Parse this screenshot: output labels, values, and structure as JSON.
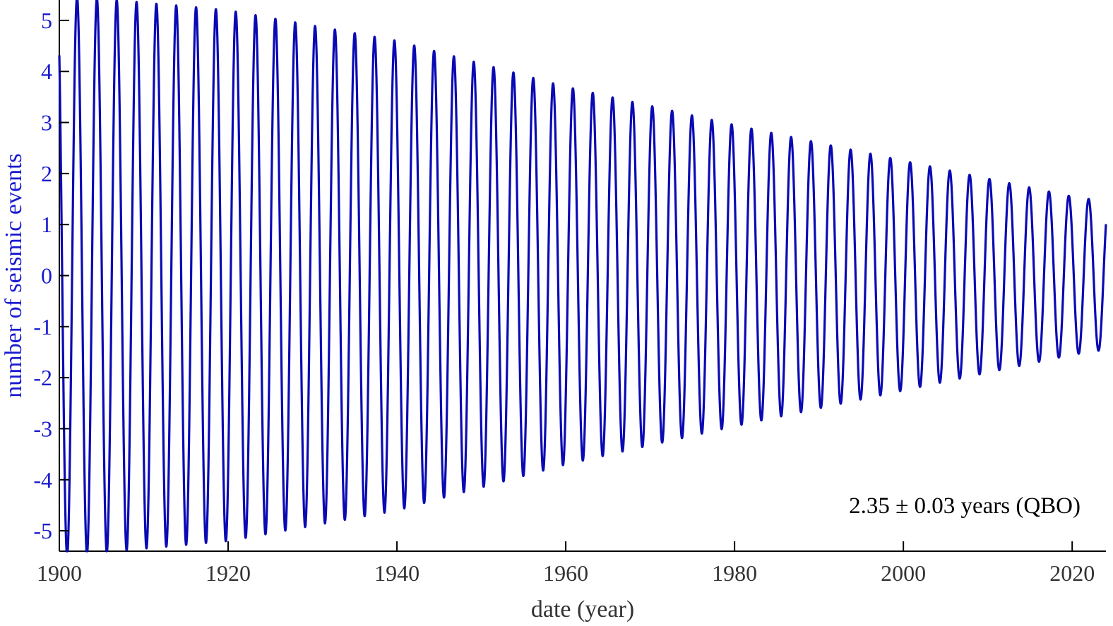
{
  "chart_data": {
    "type": "line",
    "title": "",
    "xlabel": "date (year)",
    "ylabel": "number of seismic events",
    "xlim": [
      1900,
      2024
    ],
    "ylim": [
      -5.4,
      5.4
    ],
    "xticks": [
      1900,
      1920,
      1940,
      1960,
      1980,
      2000,
      2020
    ],
    "xtick_labels": [
      "1900",
      "1920",
      "1940",
      "1960",
      "1980",
      "2000",
      "2020"
    ],
    "yticks": [
      -5,
      -4,
      -3,
      -2,
      -1,
      0,
      1,
      2,
      3,
      4,
      5
    ],
    "ytick_labels": [
      "-5",
      "-4",
      "-3",
      "-2",
      "-1",
      "0",
      "1",
      "2",
      "3",
      "4",
      "5"
    ],
    "grid": false,
    "annotation": "2.35 ± 0.03 years (QBO)",
    "series": [
      {
        "period_years": 2.35,
        "amplitude_envelope": {
          "x": [
            1900,
            1920,
            1940,
            1960,
            1980,
            2000,
            2020,
            2024
          ],
          "y": [
            5.5,
            5.2,
            4.6,
            3.7,
            2.95,
            2.25,
            1.55,
            1.45
          ]
        },
        "phase_peak_year": 1902.1
      }
    ],
    "colors": {
      "line": "#0a0ab4",
      "ytick": "#1a1ad0",
      "xtick": "#333333",
      "ylabel": "#1a1ad0",
      "xlabel": "#333333"
    }
  }
}
